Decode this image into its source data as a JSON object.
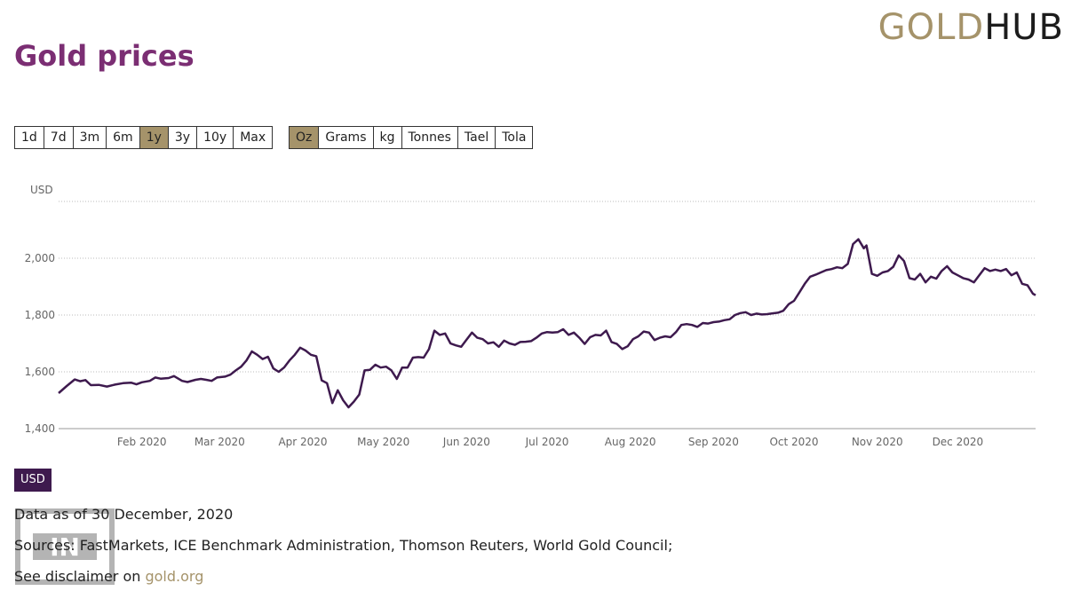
{
  "logo": {
    "part1": "GOLD",
    "part2": "HUB"
  },
  "title": "Gold prices",
  "ranges": [
    {
      "label": "1d",
      "active": false
    },
    {
      "label": "7d",
      "active": false
    },
    {
      "label": "3m",
      "active": false
    },
    {
      "label": "6m",
      "active": false
    },
    {
      "label": "1y",
      "active": true
    },
    {
      "label": "3y",
      "active": false
    },
    {
      "label": "10y",
      "active": false
    },
    {
      "label": "Max",
      "active": false
    }
  ],
  "units": [
    {
      "label": "Oz",
      "active": true
    },
    {
      "label": "Grams",
      "active": false
    },
    {
      "label": "kg",
      "active": false
    },
    {
      "label": "Tonnes",
      "active": false
    },
    {
      "label": "Tael",
      "active": false
    },
    {
      "label": "Tola",
      "active": false
    }
  ],
  "chart_data": {
    "type": "line",
    "title": "Gold prices",
    "ylabel": "USD",
    "ylim": [
      1400,
      2200
    ],
    "yticks": [
      1400,
      1600,
      1800,
      2000
    ],
    "ytick_labels": [
      "1,400",
      "1,600",
      "1,800",
      "2,000"
    ],
    "xlim_days": [
      0,
      364
    ],
    "xticks": [
      {
        "day": 31,
        "label": "Feb 2020"
      },
      {
        "day": 60,
        "label": "Mar 2020"
      },
      {
        "day": 91,
        "label": "Apr 2020"
      },
      {
        "day": 121,
        "label": "May 2020"
      },
      {
        "day": 152,
        "label": "Jun 2020"
      },
      {
        "day": 182,
        "label": "Jul 2020"
      },
      {
        "day": 213,
        "label": "Aug 2020"
      },
      {
        "day": 244,
        "label": "Sep 2020"
      },
      {
        "day": 274,
        "label": "Oct 2020"
      },
      {
        "day": 305,
        "label": "Nov 2020"
      },
      {
        "day": 335,
        "label": "Dec 2020"
      }
    ],
    "series": [
      {
        "name": "USD",
        "color": "#3e1a4e",
        "points": [
          [
            0,
            1525
          ],
          [
            3,
            1550
          ],
          [
            6,
            1573
          ],
          [
            8,
            1567
          ],
          [
            10,
            1571
          ],
          [
            12,
            1553
          ],
          [
            15,
            1554
          ],
          [
            18,
            1548
          ],
          [
            21,
            1555
          ],
          [
            24,
            1560
          ],
          [
            27,
            1562
          ],
          [
            29,
            1556
          ],
          [
            31,
            1563
          ],
          [
            34,
            1568
          ],
          [
            36,
            1580
          ],
          [
            38,
            1576
          ],
          [
            41,
            1578
          ],
          [
            43,
            1585
          ],
          [
            46,
            1568
          ],
          [
            48,
            1564
          ],
          [
            51,
            1572
          ],
          [
            53,
            1575
          ],
          [
            55,
            1572
          ],
          [
            57,
            1568
          ],
          [
            59,
            1580
          ],
          [
            62,
            1583
          ],
          [
            64,
            1590
          ],
          [
            66,
            1605
          ],
          [
            68,
            1618
          ],
          [
            70,
            1640
          ],
          [
            72,
            1672
          ],
          [
            74,
            1660
          ],
          [
            76,
            1645
          ],
          [
            78,
            1653
          ],
          [
            80,
            1612
          ],
          [
            82,
            1600
          ],
          [
            84,
            1615
          ],
          [
            86,
            1640
          ],
          [
            88,
            1660
          ],
          [
            90,
            1685
          ],
          [
            92,
            1675
          ],
          [
            94,
            1660
          ],
          [
            96,
            1655
          ],
          [
            98,
            1570
          ],
          [
            100,
            1560
          ],
          [
            102,
            1490
          ],
          [
            104,
            1535
          ],
          [
            106,
            1500
          ],
          [
            108,
            1475
          ],
          [
            110,
            1495
          ],
          [
            112,
            1520
          ],
          [
            114,
            1605
          ],
          [
            116,
            1607
          ],
          [
            118,
            1625
          ],
          [
            120,
            1615
          ],
          [
            122,
            1618
          ],
          [
            124,
            1605
          ],
          [
            126,
            1575
          ],
          [
            128,
            1615
          ],
          [
            130,
            1615
          ],
          [
            132,
            1650
          ],
          [
            134,
            1652
          ],
          [
            136,
            1650
          ],
          [
            138,
            1680
          ],
          [
            140,
            1745
          ],
          [
            142,
            1730
          ],
          [
            144,
            1735
          ],
          [
            146,
            1700
          ],
          [
            148,
            1693
          ],
          [
            150,
            1688
          ],
          [
            152,
            1713
          ],
          [
            154,
            1738
          ],
          [
            156,
            1720
          ],
          [
            158,
            1715
          ],
          [
            160,
            1700
          ],
          [
            162,
            1704
          ],
          [
            164,
            1688
          ],
          [
            166,
            1710
          ],
          [
            168,
            1700
          ],
          [
            170,
            1695
          ],
          [
            172,
            1705
          ],
          [
            174,
            1706
          ],
          [
            176,
            1708
          ],
          [
            178,
            1720
          ],
          [
            180,
            1735
          ],
          [
            182,
            1740
          ],
          [
            184,
            1738
          ],
          [
            186,
            1740
          ],
          [
            188,
            1750
          ],
          [
            190,
            1730
          ],
          [
            192,
            1738
          ],
          [
            194,
            1720
          ],
          [
            196,
            1698
          ],
          [
            198,
            1722
          ],
          [
            200,
            1730
          ],
          [
            202,
            1728
          ],
          [
            204,
            1745
          ],
          [
            206,
            1705
          ],
          [
            208,
            1698
          ],
          [
            210,
            1680
          ],
          [
            212,
            1690
          ],
          [
            214,
            1715
          ],
          [
            216,
            1725
          ],
          [
            218,
            1742
          ],
          [
            220,
            1738
          ],
          [
            222,
            1712
          ],
          [
            224,
            1720
          ],
          [
            226,
            1725
          ],
          [
            228,
            1722
          ],
          [
            230,
            1740
          ],
          [
            232,
            1765
          ],
          [
            234,
            1768
          ],
          [
            236,
            1765
          ],
          [
            238,
            1758
          ],
          [
            240,
            1772
          ],
          [
            242,
            1770
          ],
          [
            244,
            1775
          ],
          [
            246,
            1777
          ],
          [
            248,
            1782
          ],
          [
            250,
            1785
          ],
          [
            252,
            1800
          ],
          [
            254,
            1807
          ],
          [
            256,
            1810
          ],
          [
            258,
            1800
          ],
          [
            260,
            1805
          ],
          [
            262,
            1802
          ],
          [
            264,
            1803
          ],
          [
            266,
            1806
          ],
          [
            268,
            1808
          ],
          [
            270,
            1815
          ],
          [
            272,
            1838
          ],
          [
            274,
            1850
          ],
          [
            276,
            1880
          ],
          [
            278,
            1910
          ],
          [
            280,
            1935
          ],
          [
            282,
            1942
          ],
          [
            284,
            1950
          ],
          [
            286,
            1958
          ],
          [
            288,
            1962
          ],
          [
            290,
            1968
          ],
          [
            292,
            1965
          ],
          [
            294,
            1980
          ],
          [
            296,
            2050
          ],
          [
            298,
            2067
          ],
          [
            300,
            2035
          ],
          [
            301,
            2045
          ],
          [
            303,
            1945
          ],
          [
            305,
            1938
          ],
          [
            307,
            1950
          ],
          [
            309,
            1955
          ],
          [
            311,
            1970
          ],
          [
            313,
            2010
          ],
          [
            315,
            1990
          ],
          [
            317,
            1930
          ],
          [
            319,
            1925
          ],
          [
            321,
            1945
          ],
          [
            323,
            1915
          ],
          [
            325,
            1935
          ],
          [
            327,
            1928
          ],
          [
            329,
            1955
          ],
          [
            331,
            1972
          ],
          [
            333,
            1950
          ],
          [
            335,
            1940
          ],
          [
            337,
            1930
          ],
          [
            339,
            1925
          ],
          [
            341,
            1915
          ],
          [
            343,
            1940
          ],
          [
            345,
            1965
          ],
          [
            347,
            1955
          ],
          [
            349,
            1960
          ],
          [
            351,
            1955
          ],
          [
            353,
            1962
          ],
          [
            355,
            1940
          ],
          [
            357,
            1950
          ],
          [
            359,
            1910
          ],
          [
            361,
            1905
          ],
          [
            363,
            1875
          ],
          [
            364,
            1870
          ]
        ]
      }
    ]
  },
  "series_badge": "USD",
  "footer": {
    "data_as_of": "Data as of 30 December, 2020",
    "sources": "Sources: FastMarkets, ICE Benchmark Administration, Thomson Reuters, World Gold Council;",
    "disclaimer_prefix": "See disclaimer on ",
    "disclaimer_link": "gold.org"
  },
  "watermark": {
    "text": "IN"
  }
}
